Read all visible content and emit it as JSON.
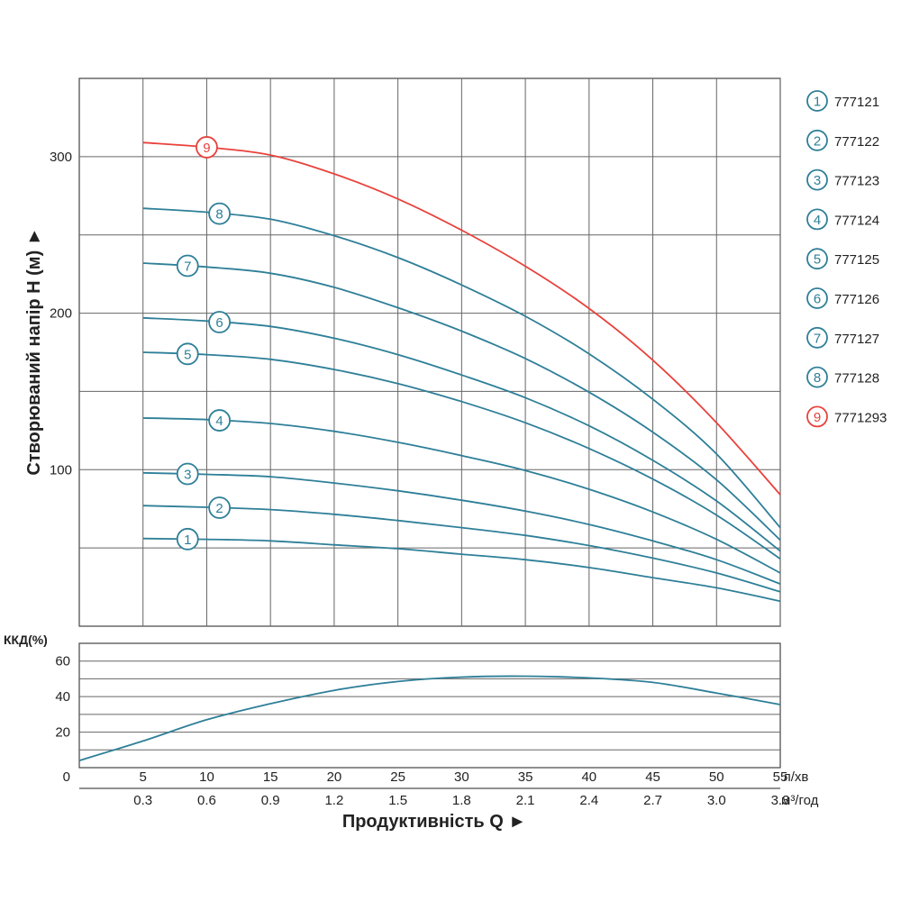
{
  "chart_data": [
    {
      "type": "line",
      "ylabel": "Створюваний напір H (м) ►",
      "xlim": [
        0,
        55
      ],
      "ylim": [
        0,
        350
      ],
      "y_ticks": [
        "100",
        "200",
        "300"
      ],
      "y_tick_values": [
        100,
        200,
        300
      ],
      "grid": true,
      "x_grid_values": [
        5,
        10,
        15,
        20,
        25,
        30,
        35,
        40,
        45,
        50,
        55
      ],
      "y_grid_values": [
        50,
        100,
        150,
        200,
        250,
        300
      ],
      "legend_position": "right",
      "colors": {
        "blue": "#2e7f98",
        "red": "#e8423c",
        "grid": "#666666"
      },
      "series": [
        {
          "name": "777121",
          "marker": "1",
          "color": "#2e7f98",
          "marker_x": 8.5,
          "x": [
            5,
            10,
            15,
            20,
            25,
            30,
            35,
            40,
            45,
            50,
            55
          ],
          "y": [
            56,
            55.5,
            54.5,
            52,
            49.5,
            46,
            42.5,
            37.5,
            31,
            24.5,
            16
          ]
        },
        {
          "name": "777122",
          "marker": "2",
          "color": "#2e7f98",
          "marker_x": 11,
          "x": [
            5,
            10,
            15,
            20,
            25,
            30,
            35,
            40,
            45,
            50,
            55
          ],
          "y": [
            77,
            76,
            74.5,
            71.5,
            67.5,
            63,
            58,
            51.5,
            43.5,
            34,
            22
          ]
        },
        {
          "name": "777123",
          "marker": "3",
          "color": "#2e7f98",
          "marker_x": 8.5,
          "x": [
            5,
            10,
            15,
            20,
            25,
            30,
            35,
            40,
            45,
            50,
            55
          ],
          "y": [
            98,
            97,
            95.5,
            91.5,
            86.5,
            80.5,
            73.5,
            65,
            54.5,
            42.5,
            27
          ]
        },
        {
          "name": "777124",
          "marker": "4",
          "color": "#2e7f98",
          "marker_x": 11,
          "x": [
            5,
            10,
            15,
            20,
            25,
            30,
            35,
            40,
            45,
            50,
            55
          ],
          "y": [
            133,
            132,
            129.5,
            124.5,
            117.5,
            109,
            99.5,
            87.5,
            73,
            55.5,
            34
          ]
        },
        {
          "name": "777125",
          "marker": "5",
          "color": "#2e7f98",
          "marker_x": 8.5,
          "x": [
            5,
            10,
            15,
            20,
            25,
            30,
            35,
            40,
            45,
            50,
            55
          ],
          "y": [
            175,
            173.5,
            170.5,
            164,
            155,
            143.5,
            130,
            113.5,
            94,
            71,
            43
          ]
        },
        {
          "name": "777126",
          "marker": "6",
          "color": "#2e7f98",
          "marker_x": 11,
          "x": [
            5,
            10,
            15,
            20,
            25,
            30,
            35,
            40,
            45,
            50,
            55
          ],
          "y": [
            197,
            195,
            191.5,
            184,
            173.5,
            160.5,
            146,
            128,
            106,
            80,
            48
          ]
        },
        {
          "name": "777127",
          "marker": "7",
          "color": "#2e7f98",
          "marker_x": 8.5,
          "x": [
            5,
            10,
            15,
            20,
            25,
            30,
            35,
            40,
            45,
            50,
            55
          ],
          "y": [
            232,
            229.5,
            225.5,
            216.5,
            203.5,
            188.5,
            171,
            149.5,
            124,
            93.5,
            55
          ]
        },
        {
          "name": "777128",
          "marker": "8",
          "color": "#2e7f98",
          "marker_x": 11,
          "x": [
            5,
            10,
            15,
            20,
            25,
            30,
            35,
            40,
            45,
            50,
            55
          ],
          "y": [
            267,
            264.5,
            260,
            249.5,
            235.5,
            218,
            198,
            174,
            145,
            110,
            63
          ]
        },
        {
          "name": "7771293",
          "marker": "9",
          "color": "#e8423c",
          "marker_x": 10,
          "x": [
            5,
            10,
            15,
            20,
            25,
            30,
            35,
            40,
            45,
            50,
            55
          ],
          "y": [
            309,
            306,
            301,
            289,
            273,
            253,
            230,
            203,
            170,
            130,
            84
          ]
        }
      ]
    },
    {
      "type": "line",
      "ylabel": "ККД(%)",
      "xlabel": "Продуктивність Q ►",
      "xlim": [
        0,
        55
      ],
      "ylim": [
        0,
        70
      ],
      "y_ticks": [
        "0",
        "20",
        "40",
        "60"
      ],
      "y_tick_values": [
        0,
        20,
        40,
        60
      ],
      "grid": true,
      "y_grid_values": [
        10,
        20,
        30,
        40,
        50,
        60
      ],
      "x_ticks_primary": [
        "5",
        "10",
        "15",
        "20",
        "25",
        "30",
        "35",
        "40",
        "45",
        "50",
        "55"
      ],
      "x_unit_primary": "л/хв",
      "x_ticks_secondary": [
        "0.3",
        "0.6",
        "0.9",
        "1.2",
        "1.5",
        "1.8",
        "2.1",
        "2.4",
        "2.7",
        "3.0",
        "3.3"
      ],
      "x_unit_secondary": "м³/год",
      "x_tick_values": [
        5,
        10,
        15,
        20,
        25,
        30,
        35,
        40,
        45,
        50,
        55
      ],
      "series": [
        {
          "color": "#2e7f98",
          "x": [
            0,
            5,
            10,
            15,
            20,
            25,
            30,
            35,
            40,
            45,
            50,
            55
          ],
          "y": [
            4,
            15,
            27,
            36,
            43.5,
            48.5,
            51,
            51.5,
            50.5,
            48,
            42,
            35.5
          ]
        }
      ]
    }
  ]
}
